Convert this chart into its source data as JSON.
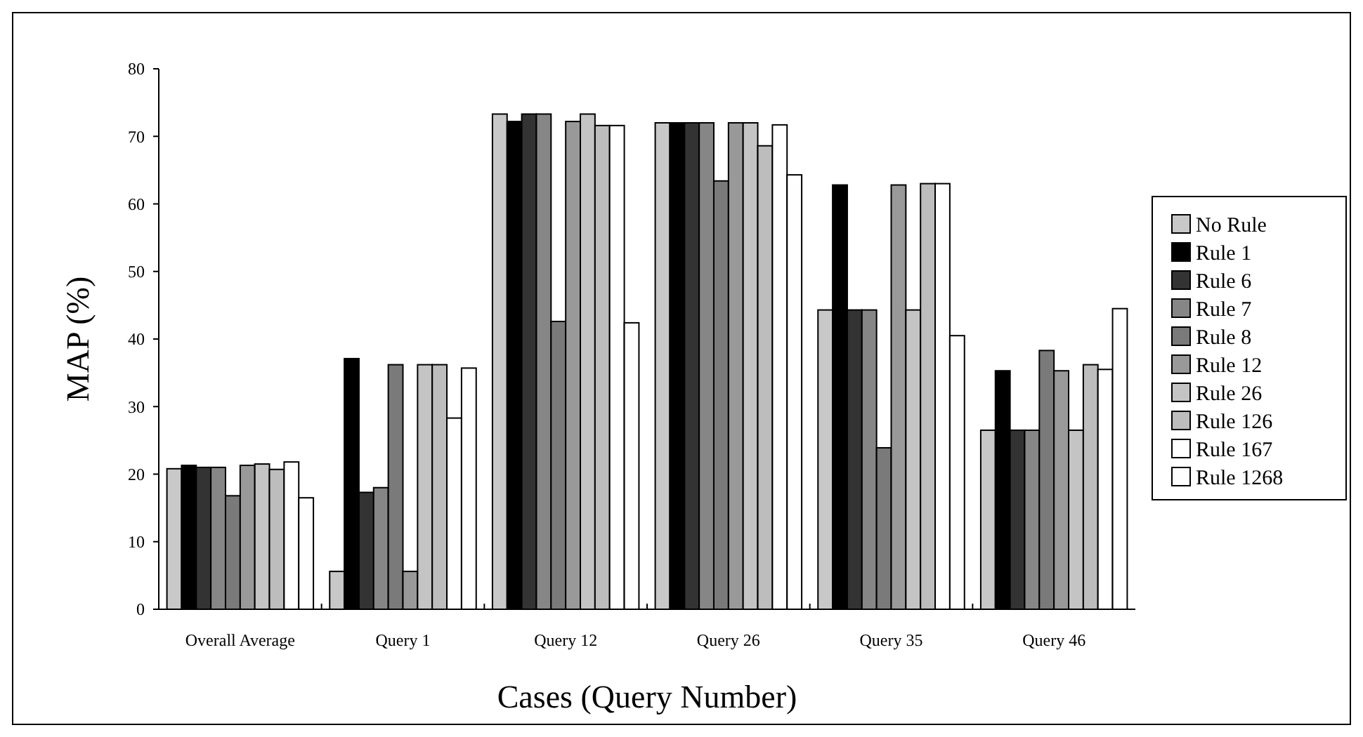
{
  "chart_data": {
    "type": "bar",
    "xlabel": "Cases (Query Number)",
    "ylabel": "MAP (%)",
    "categories": [
      "Overall Average",
      "Query 1",
      "Query 12",
      "Query 26",
      "Query 35",
      "Query 46"
    ],
    "ylim": [
      0,
      80
    ],
    "yticks": [
      0,
      10,
      20,
      30,
      40,
      50,
      60,
      70,
      80
    ],
    "grid": false,
    "legend": "right",
    "series": [
      {
        "name": "No Rule",
        "color": "#c8c8c8",
        "values": [
          20.8,
          5.6,
          73.3,
          72,
          44.3,
          26.5
        ]
      },
      {
        "name": "Rule 1",
        "color": "#000000",
        "values": [
          21.3,
          37.1,
          72.2,
          72,
          62.8,
          35.3
        ]
      },
      {
        "name": "Rule 6",
        "color": "#333333",
        "values": [
          21,
          17.3,
          73.3,
          72,
          44.3,
          26.5
        ]
      },
      {
        "name": "Rule 7",
        "color": "#868686",
        "values": [
          21,
          18,
          73.3,
          72,
          44.3,
          26.5
        ]
      },
      {
        "name": "Rule 8",
        "color": "#7a7a7a",
        "values": [
          16.8,
          36.2,
          42.6,
          63.4,
          23.9,
          38.3
        ]
      },
      {
        "name": "Rule 12",
        "color": "#999999",
        "values": [
          21.3,
          5.6,
          72.2,
          72,
          62.8,
          35.3
        ]
      },
      {
        "name": "Rule 26",
        "color": "#c4c4c4",
        "values": [
          21.5,
          36.2,
          73.3,
          72,
          44.3,
          26.5
        ]
      },
      {
        "name": "Rule 126",
        "color": "#bdbdbd",
        "values": [
          20.7,
          36.2,
          71.6,
          68.6,
          63,
          36.2
        ]
      },
      {
        "name": "Rule 167",
        "color": "#ffffff",
        "values": [
          21.8,
          28.3,
          71.6,
          71.7,
          63,
          35.5
        ]
      },
      {
        "name": "Rule 1268",
        "color": "#fefefe",
        "values": [
          16.5,
          35.7,
          42.4,
          64.3,
          40.5,
          44.5
        ]
      }
    ]
  }
}
